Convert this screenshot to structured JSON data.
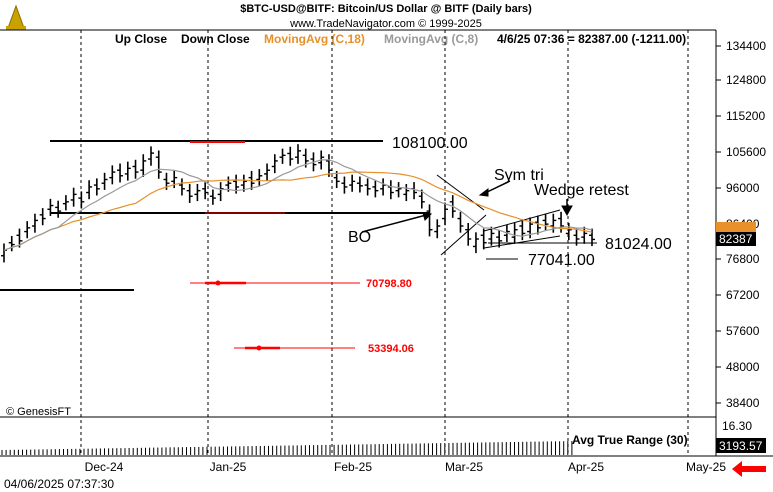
{
  "header": {
    "line1": "$BTC-USD@BITF:  Bitcoin/US Dollar @ BITF  (Daily bars)",
    "line2": "www.TradeNavigator.com © 1999-2025"
  },
  "legend": {
    "up_close": "Up Close",
    "down_close": "Down Close",
    "ma18": "MovingAvg (C,18)",
    "ma8": "MovingAvg (C,8)",
    "quote": "4/6/25 07:36 = 82387.00 (-1211.00)"
  },
  "colors": {
    "ma18": "#e8902a",
    "ma8": "#9a9a9a",
    "red_level": "#ff0000",
    "last_price_box": "#000000",
    "arrow": "#ff0000"
  },
  "watermark": "© GenesisFT",
  "footer_timestamp": "04/06/2025 07:37:30",
  "last_price_label": "82387",
  "chart_data": {
    "type": "ohlc",
    "title": "$BTC-USD@BITF:  Bitcoin/US Dollar @ BITF  (Daily bars)",
    "y_axis_ticks": [
      "134400",
      "124800",
      "115200",
      "105600",
      "96000",
      "86400",
      "76800",
      "67200",
      "57600",
      "48000",
      "38400"
    ],
    "ylim": [
      33000,
      140000
    ],
    "x_axis_ticks": [
      "Dec-24",
      "Jan-25",
      "Feb-25",
      "Mar-25",
      "Apr-25",
      "May-25"
    ],
    "close_series": [
      [
        78000,
        79500
      ],
      [
        81500,
        81000
      ],
      [
        83500,
        82000
      ],
      [
        84500,
        85500
      ],
      [
        86000,
        87500
      ],
      [
        89000,
        88000
      ],
      [
        90500,
        91500
      ],
      [
        91000,
        90000
      ],
      [
        92000,
        92500
      ],
      [
        93000,
        94500
      ],
      [
        93500,
        92500
      ],
      [
        95000,
        96500
      ],
      [
        97000,
        96000
      ],
      [
        97500,
        98500
      ],
      [
        99000,
        100500
      ],
      [
        101000,
        99500
      ],
      [
        100000,
        101500
      ],
      [
        102000,
        100500
      ],
      [
        101000,
        103500
      ],
      [
        104000,
        105600
      ],
      [
        104500,
        100500
      ],
      [
        98500,
        97500
      ],
      [
        98000,
        99000
      ],
      [
        97000,
        96000
      ],
      [
        95500,
        94000
      ],
      [
        94500,
        95500
      ],
      [
        96000,
        95000
      ],
      [
        94000,
        93500
      ],
      [
        94500,
        96000
      ],
      [
        97000,
        97500
      ],
      [
        98000,
        96500
      ],
      [
        97000,
        98000
      ],
      [
        99000,
        97500
      ],
      [
        98500,
        99500
      ],
      [
        100000,
        101000
      ],
      [
        102000,
        103500
      ],
      [
        104500,
        105000
      ],
      [
        105500,
        104000
      ],
      [
        104500,
        106200
      ],
      [
        105000,
        103500
      ],
      [
        104000,
        102500
      ],
      [
        103000,
        104500
      ],
      [
        103500,
        101000
      ],
      [
        99000,
        98000
      ],
      [
        97500,
        96500
      ],
      [
        97000,
        98000
      ],
      [
        97500,
        96800
      ],
      [
        97000,
        96000
      ],
      [
        96500,
        95500
      ],
      [
        96000,
        97000
      ],
      [
        96500,
        95000
      ],
      [
        95500,
        96000
      ],
      [
        94500,
        95500
      ],
      [
        96000,
        95000
      ],
      [
        94000,
        92500
      ],
      [
        90000,
        85000
      ],
      [
        84500,
        86000
      ],
      [
        88000,
        90500
      ],
      [
        92500,
        90000
      ],
      [
        88000,
        86000
      ],
      [
        85000,
        82500
      ],
      [
        80500,
        82500
      ],
      [
        83500,
        81500
      ],
      [
        82500,
        84000
      ],
      [
        83000,
        82000
      ],
      [
        83500,
        84500
      ],
      [
        83000,
        85000
      ],
      [
        86000,
        84000
      ],
      [
        84500,
        86500
      ],
      [
        87000,
        85500
      ],
      [
        87500,
        86500
      ],
      [
        86000,
        87500
      ],
      [
        88000,
        86000
      ],
      [
        84000,
        85000
      ],
      [
        83500,
        82500
      ],
      [
        83000,
        84000
      ],
      [
        83500,
        82387
      ]
    ],
    "annotations": [
      {
        "text": "108100.00",
        "kind": "resistance-level",
        "value": 108100
      },
      {
        "text": "Sym tri",
        "kind": "pattern-label"
      },
      {
        "text": "Wedge retest",
        "kind": "pattern-label"
      },
      {
        "text": "BO",
        "kind": "pattern-label"
      },
      {
        "text": "81024.00",
        "kind": "level",
        "value": 81024
      },
      {
        "text": "77041.00",
        "kind": "level",
        "value": 77041
      },
      {
        "text": "70798.80",
        "kind": "target-level",
        "value": 70798.8
      },
      {
        "text": "53394.06",
        "kind": "target-level",
        "value": 53394.06
      }
    ],
    "indicator": {
      "name": "Avg True Range (30)",
      "value_label": "3193.57",
      "axis_label": "16.30"
    },
    "series_names": [
      "Up Close",
      "Down Close",
      "MovingAvg (C,18)",
      "MovingAvg (C,8)"
    ],
    "grid": "dotted vertical at month starts",
    "legend_position": "top"
  }
}
